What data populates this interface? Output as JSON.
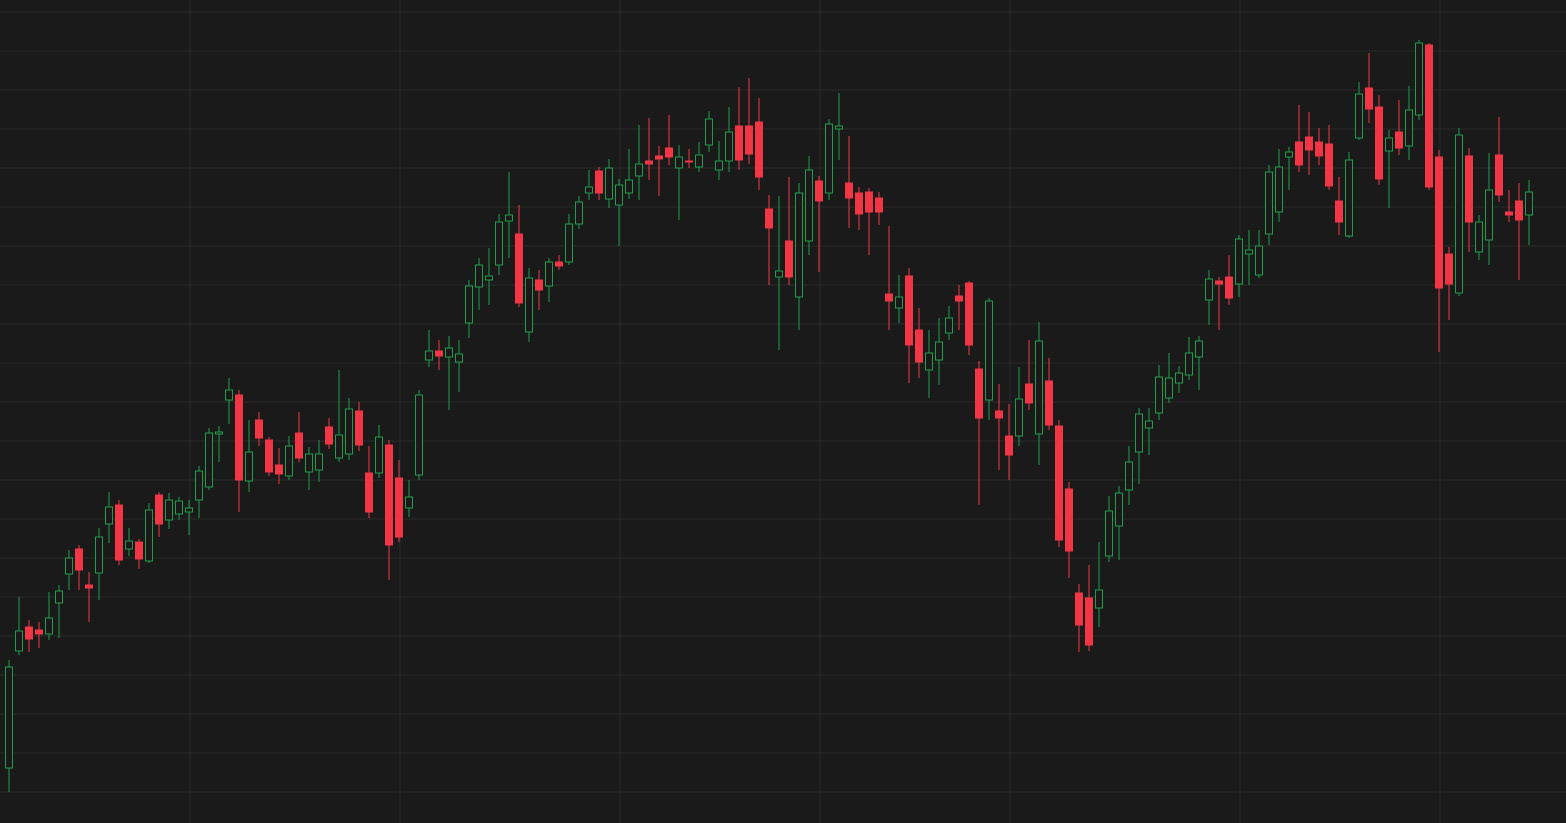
{
  "chart_data": {
    "type": "candlestick",
    "up_color": "#1f9d4a",
    "down_color": "#f23645",
    "grid": true,
    "xlim": [
      -0.9,
      155.7
    ],
    "xticks": [
      18.1,
      39.1,
      61.1,
      81.1,
      100.1,
      123.1,
      143.1
    ],
    "ylim": [
      0,
      823
    ],
    "yticks": [
      31,
      70,
      109,
      148,
      187,
      226,
      265,
      304,
      343,
      382,
      421,
      460,
      499,
      538,
      577,
      616,
      655,
      694,
      733,
      772,
      811
    ],
    "x": [
      0,
      1,
      2,
      3,
      4,
      5,
      6,
      7,
      8,
      9,
      10,
      11,
      12,
      13,
      14,
      15,
      16,
      17,
      18,
      19,
      20,
      21,
      22,
      23,
      24,
      25,
      26,
      27,
      28,
      29,
      30,
      31,
      32,
      33,
      34,
      35,
      36,
      37,
      38,
      39,
      40,
      41,
      42,
      43,
      44,
      45,
      46,
      47,
      48,
      49,
      50,
      51,
      52,
      53,
      54,
      55,
      56,
      57,
      58,
      59,
      60,
      61,
      62,
      63,
      64,
      65,
      66,
      67,
      68,
      69,
      70,
      71,
      72,
      73,
      74,
      75,
      76,
      77,
      78,
      79,
      80,
      81,
      82,
      83,
      84,
      85,
      86,
      87,
      88,
      89,
      90,
      91,
      92,
      93,
      94,
      95,
      96,
      97,
      98,
      99,
      100,
      101,
      102,
      103,
      104,
      105,
      106,
      107,
      108,
      109,
      110,
      111,
      112,
      113,
      114,
      115,
      116,
      117,
      118,
      119,
      120,
      121,
      122,
      123,
      124,
      125,
      126,
      127,
      128,
      129,
      130,
      131,
      132,
      133,
      134,
      135,
      136,
      137,
      138,
      139,
      140,
      141,
      142,
      143,
      144,
      145,
      146,
      147,
      148,
      149,
      150,
      151,
      152
    ],
    "open": [
      55,
      172,
      196,
      193,
      189,
      220,
      249,
      274,
      238,
      250,
      299,
      318,
      274,
      281,
      262,
      328,
      303,
      309,
      311,
      323,
      336,
      389,
      423,
      428,
      342,
      403,
      383,
      358,
      347,
      390,
      351,
      353,
      396,
      365,
      369,
      412,
      350,
      350,
      378,
      345,
      315,
      348,
      463,
      472,
      466,
      461,
      500,
      536,
      543,
      558,
      602,
      589,
      491,
      543,
      537,
      561,
      561,
      599,
      630,
      652,
      624,
      618,
      630,
      647,
      662,
      667,
      675,
      655,
      662,
      656,
      678,
      653,
      662,
      697,
      697,
      701,
      614,
      546,
      582,
      526,
      582,
      642,
      630,
      694,
      640,
      630,
      631,
      625,
      529,
      515,
      547,
      493,
      453,
      463,
      490,
      527,
      540,
      454,
      423,
      412,
      387,
      387,
      439,
      389,
      442,
      397,
      334,
      230,
      225,
      215,
      267,
      297,
      333,
      371,
      395,
      410,
      425,
      440,
      448,
      466,
      523,
      542,
      546,
      539,
      569,
      548,
      589,
      611,
      666,
      681,
      686,
      681,
      679,
      622,
      587,
      685,
      735,
      716,
      672,
      691,
      677,
      708,
      778,
      666,
      569,
      530,
      667,
      571,
      583,
      668,
      611,
      622,
      608
    ],
    "high": [
      163,
      226,
      203,
      201,
      231,
      238,
      273,
      278,
      251,
      295,
      331,
      323,
      295,
      284,
      320,
      331,
      330,
      326,
      323,
      357,
      395,
      397,
      445,
      433,
      403,
      411,
      386,
      375,
      387,
      411,
      376,
      383,
      405,
      453,
      425,
      421,
      377,
      398,
      383,
      363,
      343,
      433,
      493,
      483,
      487,
      483,
      543,
      565,
      575,
      609,
      651,
      618,
      555,
      553,
      565,
      568,
      609,
      627,
      653,
      656,
      664,
      644,
      674,
      698,
      705,
      677,
      708,
      678,
      674,
      681,
      712,
      682,
      716,
      736,
      745,
      725,
      628,
      627,
      646,
      640,
      667,
      647,
      704,
      730,
      687,
      636,
      635,
      631,
      597,
      548,
      555,
      515,
      493,
      505,
      517,
      538,
      542,
      462,
      525,
      439,
      419,
      456,
      483,
      501,
      465,
      403,
      341,
      239,
      258,
      281,
      327,
      337,
      377,
      415,
      415,
      458,
      470,
      457,
      486,
      487,
      553,
      546,
      568,
      588,
      593,
      593,
      658,
      674,
      676,
      718,
      711,
      695,
      698,
      646,
      671,
      741,
      770,
      728,
      693,
      723,
      737,
      783,
      780,
      673,
      576,
      695,
      675,
      608,
      670,
      706,
      633,
      640,
      643
    ],
    "low": [
      31,
      168,
      171,
      175,
      183,
      185,
      233,
      233,
      201,
      223,
      280,
      258,
      267,
      254,
      260,
      286,
      294,
      303,
      288,
      305,
      333,
      361,
      399,
      311,
      331,
      377,
      347,
      339,
      343,
      361,
      333,
      341,
      374,
      361,
      363,
      372,
      305,
      345,
      243,
      281,
      306,
      343,
      456,
      453,
      413,
      431,
      485,
      513,
      518,
      548,
      565,
      516,
      481,
      513,
      521,
      553,
      558,
      594,
      623,
      623,
      615,
      577,
      624,
      623,
      643,
      627,
      658,
      603,
      655,
      651,
      671,
      643,
      651,
      653,
      659,
      633,
      538,
      473,
      538,
      493,
      568,
      551,
      623,
      663,
      595,
      593,
      568,
      598,
      493,
      500,
      440,
      445,
      425,
      438,
      483,
      493,
      468,
      318,
      403,
      353,
      343,
      377,
      413,
      358,
      393,
      276,
      245,
      171,
      172,
      196,
      261,
      263,
      318,
      339,
      368,
      403,
      420,
      430,
      443,
      433,
      498,
      493,
      518,
      526,
      538,
      545,
      578,
      601,
      633,
      651,
      648,
      658,
      633,
      588,
      585,
      683,
      700,
      638,
      615,
      668,
      663,
      703,
      633,
      471,
      503,
      527,
      571,
      563,
      558,
      621,
      601,
      543,
      578
    ],
    "close": [
      156,
      192,
      184,
      189,
      205,
      232,
      265,
      253,
      235,
      286,
      316,
      263,
      282,
      264,
      313,
      299,
      323,
      322,
      315,
      352,
      390,
      391,
      433,
      343,
      371,
      385,
      351,
      349,
      377,
      365,
      369,
      369,
      379,
      388,
      414,
      378,
      311,
      386,
      278,
      286,
      326,
      428,
      472,
      467,
      475,
      469,
      537,
      558,
      547,
      601,
      608,
      520,
      545,
      533,
      561,
      557,
      599,
      621,
      636,
      630,
      655,
      638,
      643,
      659,
      659,
      664,
      666,
      666,
      661,
      668,
      704,
      662,
      691,
      663,
      669,
      646,
      595,
      552,
      546,
      630,
      653,
      622,
      699,
      697,
      625,
      609,
      611,
      611,
      522,
      526,
      478,
      461,
      470,
      481,
      505,
      522,
      478,
      405,
      522,
      405,
      368,
      424,
      420,
      482,
      398,
      283,
      272,
      198,
      178,
      233,
      312,
      330,
      361,
      409,
      402,
      446,
      445,
      450,
      470,
      482,
      544,
      539,
      525,
      584,
      573,
      577,
      651,
      656,
      671,
      658,
      673,
      667,
      637,
      601,
      663,
      729,
      714,
      644,
      685,
      675,
      713,
      780,
      636,
      535,
      539,
      688,
      601,
      601,
      633,
      628,
      608,
      603,
      631
    ]
  }
}
